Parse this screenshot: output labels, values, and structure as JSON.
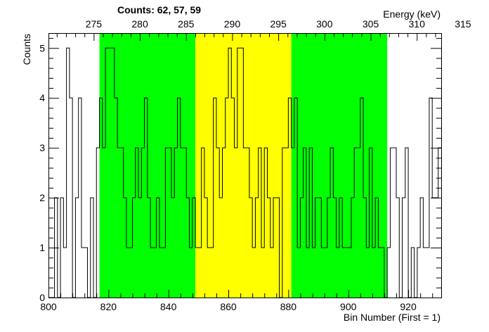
{
  "chart_data": {
    "type": "histogram",
    "counts_title": "Counts:   62,   57,   59",
    "xlabel": "Bin Number (First = 1)",
    "ylabel": "Counts",
    "x2label": "Energy (keV)",
    "xlim": [
      800,
      931
    ],
    "ylim": [
      0,
      5.3
    ],
    "energy_axis_ticks": [
      275,
      280,
      285,
      290,
      295,
      300,
      305,
      310,
      315
    ],
    "x_ticks": [
      800,
      820,
      840,
      860,
      880,
      900,
      920
    ],
    "y_ticks": [
      0,
      1,
      2,
      3,
      4,
      5
    ],
    "bin_start": 800,
    "bin_width": 1,
    "values": [
      0,
      0,
      2,
      0,
      2,
      1,
      5,
      4,
      0,
      2,
      4,
      1,
      1,
      0,
      2,
      0,
      3,
      4,
      3,
      5,
      5,
      5,
      4,
      3,
      3,
      2,
      1,
      1,
      2,
      3,
      2,
      3,
      4,
      2,
      1,
      1,
      2,
      1,
      1,
      3,
      3,
      2,
      3,
      4,
      3,
      3,
      2,
      1,
      2,
      1,
      1,
      3,
      2,
      1,
      1,
      4,
      3,
      2,
      3,
      4,
      5,
      4,
      3,
      5,
      5,
      3,
      3,
      2,
      1,
      2,
      3,
      1,
      3,
      2,
      1,
      2,
      2,
      0,
      3,
      3,
      4,
      3,
      4,
      1,
      2,
      3,
      1,
      3,
      1,
      2,
      2,
      1,
      1,
      2,
      3,
      2,
      1,
      2,
      1,
      1,
      1,
      2,
      3,
      3,
      4,
      2,
      1,
      3,
      1,
      2,
      1,
      1,
      0,
      1,
      3,
      3,
      2,
      0,
      2,
      3,
      0,
      1,
      0,
      1,
      2,
      1,
      1,
      4,
      2,
      2,
      3
    ],
    "regions": [
      {
        "from": 817,
        "to": 849,
        "color": "#00ff00",
        "count": 62
      },
      {
        "from": 849,
        "to": 881,
        "color": "#ffff00",
        "count": 57
      },
      {
        "from": 881,
        "to": 913,
        "color": "#00ff00",
        "count": 59
      }
    ],
    "grid": false
  }
}
